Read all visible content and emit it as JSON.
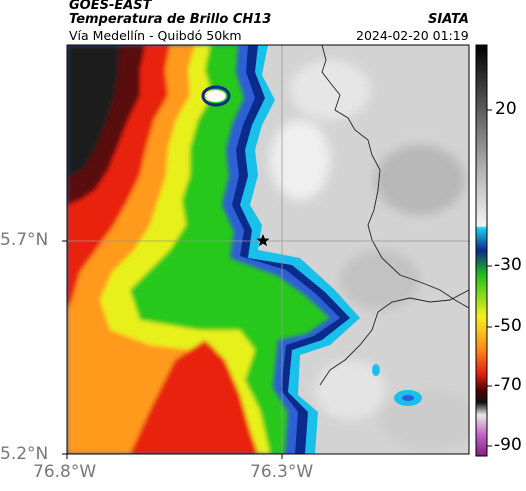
{
  "header": {
    "satellite": "GOES-EAST",
    "product": "Temperatura de Brillo CH13",
    "region": "Vía Medellín - Quibdó 50km",
    "agency": "SIATA",
    "datetime": "2024-02-20 01:19"
  },
  "axes": {
    "lat_ticks": [
      "5.7°N",
      "5.2°N"
    ],
    "lon_ticks": [
      "76.8°W",
      "76.3°W"
    ]
  },
  "colorbar": {
    "ticks": [
      "20",
      "-30",
      "-50",
      "-70",
      "-90"
    ]
  },
  "colors": {
    "cold_black": "#1a1a1a",
    "red": "#e6200f",
    "orange": "#ff8a1a",
    "yellow": "#f2f21a",
    "green": "#22c21a",
    "cyan": "#19b8e6",
    "navy": "#0a2a8c",
    "gray": "#d6d6d6"
  },
  "marker_icon": "star-icon"
}
